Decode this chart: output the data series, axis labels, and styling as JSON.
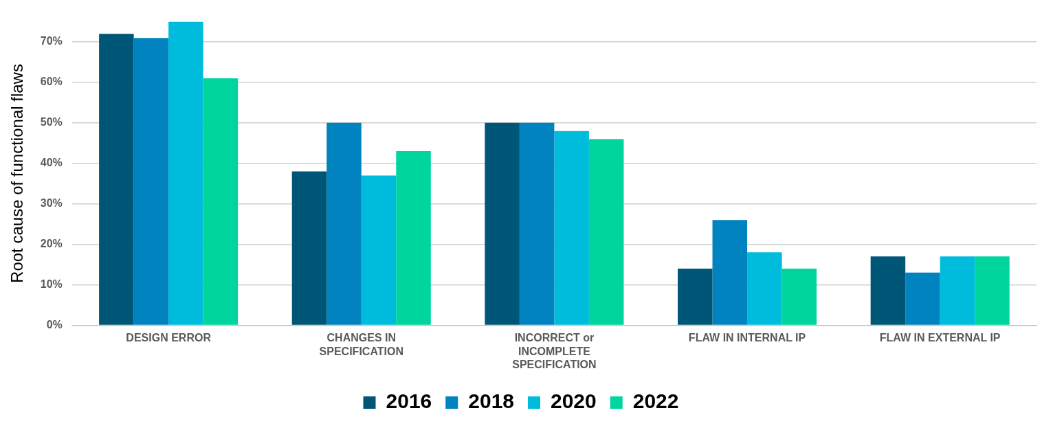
{
  "chart_data": {
    "type": "bar",
    "ylabel": "Root cause of functional flaws",
    "categories": [
      "DESIGN ERROR",
      "CHANGES IN SPECIFICATION",
      "INCORRECT or INCOMPLETE SPECIFICATION",
      "FLAW IN INTERNAL IP",
      "FLAW IN EXTERNAL IP"
    ],
    "series": [
      {
        "name": "2016",
        "color": "#005677",
        "values": [
          72,
          38,
          50,
          14,
          17
        ]
      },
      {
        "name": "2018",
        "color": "#0083bf",
        "values": [
          71,
          50,
          50,
          26,
          13
        ]
      },
      {
        "name": "2020",
        "color": "#00bcdc",
        "values": [
          75,
          37,
          48,
          18,
          17
        ]
      },
      {
        "name": "2022",
        "color": "#00d59e",
        "values": [
          61,
          43,
          46,
          14,
          17
        ]
      }
    ],
    "ylim": [
      0,
      75
    ],
    "yticks": [
      {
        "value": 0,
        "label": "0%"
      },
      {
        "value": 10,
        "label": "10%"
      },
      {
        "value": 20,
        "label": "20%"
      },
      {
        "value": 30,
        "label": "30%"
      },
      {
        "value": 40,
        "label": "40%"
      },
      {
        "value": 50,
        "label": "50%"
      },
      {
        "value": 60,
        "label": "60%"
      },
      {
        "value": 70,
        "label": "70%"
      }
    ],
    "grid": "y",
    "legend": "bottom"
  }
}
